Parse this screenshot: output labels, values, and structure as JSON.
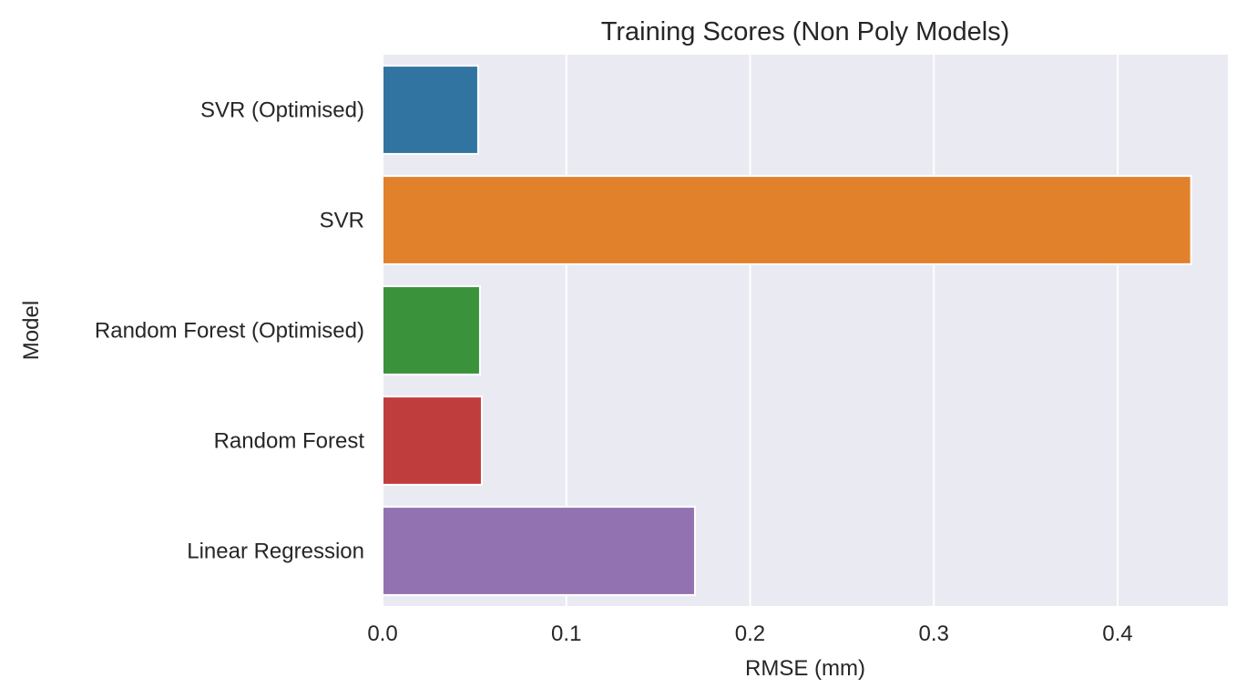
{
  "chart_data": {
    "type": "bar",
    "orientation": "horizontal",
    "title": "Training Scores (Non Poly Models)",
    "xlabel": "RMSE (mm)",
    "ylabel": "Model",
    "categories": [
      "SVR (Optimised)",
      "SVR",
      "Random Forest (Optimised)",
      "Random Forest",
      "Linear Regression"
    ],
    "values": [
      0.052,
      0.44,
      0.053,
      0.054,
      0.17
    ],
    "colors": [
      "#3274a1",
      "#e1812c",
      "#3a923a",
      "#c03d3e",
      "#9372b2"
    ],
    "xlim": [
      0,
      0.46
    ],
    "xticks": [
      0.0,
      0.1,
      0.2,
      0.3,
      0.4
    ],
    "xtick_labels": [
      "0.0",
      "0.1",
      "0.2",
      "0.3",
      "0.4"
    ],
    "grid": true,
    "background": "#eaeaf2"
  }
}
